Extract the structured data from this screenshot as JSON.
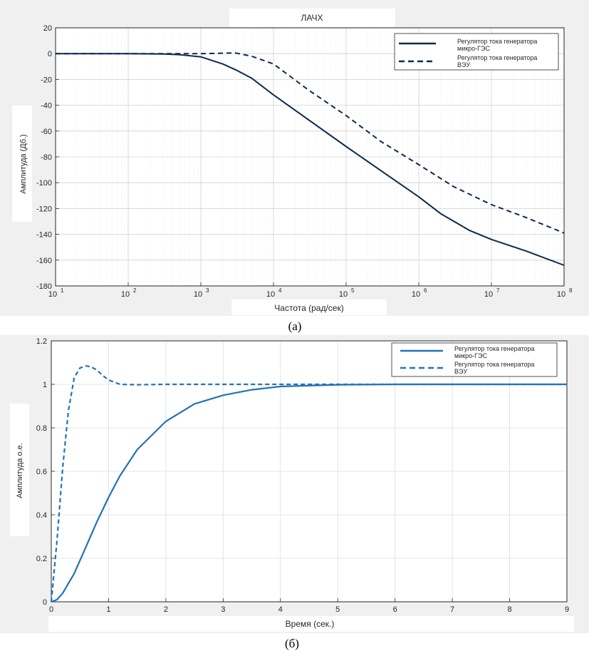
{
  "chart_data": [
    {
      "type": "line",
      "title": "ЛАЧХ",
      "xlabel": "Частота (рад/сек)",
      "ylabel": "Амплитуда (Дб.)",
      "xscale": "log",
      "xlim": [
        10,
        100000000
      ],
      "ylim": [
        -180,
        20
      ],
      "x_ticks": [
        {
          "base": "10",
          "exp": "1"
        },
        {
          "base": "10",
          "exp": "2"
        },
        {
          "base": "10",
          "exp": "3"
        },
        {
          "base": "10",
          "exp": "4"
        },
        {
          "base": "10",
          "exp": "5"
        },
        {
          "base": "10",
          "exp": "6"
        },
        {
          "base": "10",
          "exp": "7"
        },
        {
          "base": "10",
          "exp": "8"
        }
      ],
      "y_ticks": [
        "20",
        "0",
        "-20",
        "-40",
        "-60",
        "-80",
        "-100",
        "-120",
        "-140",
        "-160",
        "-180"
      ],
      "grid": true,
      "legend_position": "top-right",
      "series": [
        {
          "name": "Регулятор тока генератора микро-ГЭС",
          "legend_lines": [
            "Регулятор тока генератора",
            "микро-ГЭС"
          ],
          "style": "solid",
          "x": [
            10,
            100,
            300,
            500,
            1000,
            2000,
            3000,
            5000,
            10000,
            100000,
            1000000,
            2000000,
            5000000,
            10000000,
            30000000,
            100000000
          ],
          "y": [
            0,
            0,
            -0.3,
            -0.8,
            -2.5,
            -8,
            -12.5,
            -19,
            -32,
            -72,
            -111,
            -124,
            -137,
            -144,
            -153,
            -164
          ]
        },
        {
          "name": "Регулятор тока генератора ВЭУ",
          "legend_lines": [
            "Регулятор тока генератора",
            "ВЭУ"
          ],
          "style": "dashed",
          "x": [
            10,
            100,
            1000,
            3000,
            5000,
            10000,
            30000,
            100000,
            300000,
            1000000,
            3000000,
            10000000,
            30000000,
            100000000
          ],
          "y": [
            0,
            0,
            0,
            0.5,
            -2,
            -8,
            -28,
            -48,
            -68,
            -86,
            -103,
            -117,
            -127,
            -139
          ]
        }
      ],
      "caption": "(а)"
    },
    {
      "type": "line",
      "title": "",
      "xlabel": "Время (сек.)",
      "ylabel": "Амплитуда о.е.",
      "xlim": [
        0,
        9
      ],
      "ylim": [
        0,
        1.2
      ],
      "x_ticks": [
        "0",
        "1",
        "2",
        "3",
        "4",
        "5",
        "6",
        "7",
        "8",
        "9"
      ],
      "y_ticks": [
        "0",
        "0.2",
        "0.4",
        "0.6",
        "0.8",
        "1",
        "1.2"
      ],
      "grid": true,
      "legend_position": "top-right",
      "series": [
        {
          "name": "Регулятор тока генератора микро-ГЭС",
          "legend_lines": [
            "Регулятор тока генератора",
            "микро-ГЭС"
          ],
          "style": "solid",
          "x": [
            0,
            0.1,
            0.2,
            0.4,
            0.6,
            0.8,
            1.0,
            1.2,
            1.5,
            2.0,
            2.5,
            3.0,
            3.5,
            4.0,
            5.0,
            6.0,
            9.0
          ],
          "y": [
            0,
            0.01,
            0.04,
            0.13,
            0.25,
            0.37,
            0.48,
            0.58,
            0.7,
            0.83,
            0.91,
            0.95,
            0.975,
            0.99,
            0.998,
            1.0,
            1.0
          ]
        },
        {
          "name": "Регулятор тока генератора ВЭУ",
          "legend_lines": [
            "Регулятор тока генератора",
            "ВЭУ"
          ],
          "style": "dashed",
          "x": [
            0,
            0.1,
            0.2,
            0.3,
            0.4,
            0.5,
            0.6,
            0.7,
            0.8,
            0.9,
            1.0,
            1.2,
            1.5,
            2.0,
            9.0
          ],
          "y": [
            0,
            0.28,
            0.62,
            0.88,
            1.03,
            1.075,
            1.085,
            1.08,
            1.065,
            1.04,
            1.02,
            1.0,
            0.998,
            1.0,
            1.0
          ]
        }
      ],
      "caption": "(б)"
    }
  ]
}
